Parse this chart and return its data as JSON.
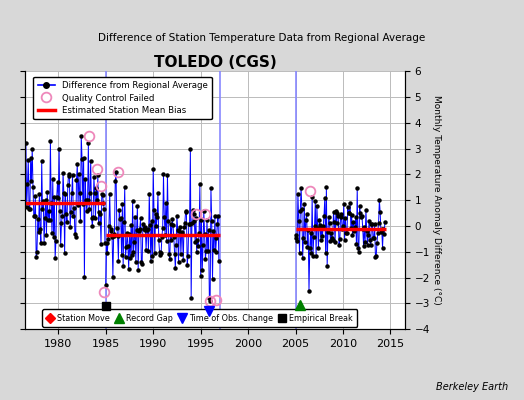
{
  "title": "TOLEDO (CGS)",
  "subtitle": "Difference of Station Temperature Data from Regional Average",
  "ylabel": "Monthly Temperature Anomaly Difference (°C)",
  "xlim": [
    1976.5,
    2016.5
  ],
  "ylim": [
    -4,
    6
  ],
  "yticks": [
    -4,
    -3,
    -2,
    -1,
    0,
    1,
    2,
    3,
    4,
    5,
    6
  ],
  "xticks": [
    1980,
    1985,
    1990,
    1995,
    2000,
    2005,
    2010,
    2015
  ],
  "bg_color": "#d8d8d8",
  "plot_bg_color": "#ffffff",
  "grid_color": "#bbbbbb",
  "segment_biases": [
    {
      "x_start": 1976.5,
      "x_end": 1984.9,
      "bias": 0.9
    },
    {
      "x_start": 1985.0,
      "x_end": 1997.0,
      "bias": -0.35
    },
    {
      "x_start": 2005.0,
      "x_end": 2014.5,
      "bias": -0.1
    }
  ],
  "vertical_lines": [
    {
      "x": 1985,
      "color": "#8888ff",
      "lw": 1.2
    },
    {
      "x": 1997,
      "color": "#8888ff",
      "lw": 1.2
    },
    {
      "x": 2005,
      "color": "#8888ff",
      "lw": 1.2
    }
  ],
  "empirical_break_x": 1985.0,
  "empirical_break_y": -3.1,
  "record_gap_x": 2005.5,
  "record_gap_y": -3.05,
  "time_of_obs_change_x": 1995.83,
  "time_of_obs_change_y": -3.3,
  "qc_failed_points_x": [
    1983.25,
    1984.08,
    1984.5,
    1984.83,
    1986.25,
    1994.5,
    1995.5,
    1996.0,
    1996.6,
    2006.5
  ],
  "qc_failed_points_y": [
    3.5,
    2.2,
    1.55,
    -2.55,
    2.1,
    0.45,
    0.45,
    -2.9,
    -2.85,
    1.35
  ],
  "annotations_text": "Berkeley Earth"
}
